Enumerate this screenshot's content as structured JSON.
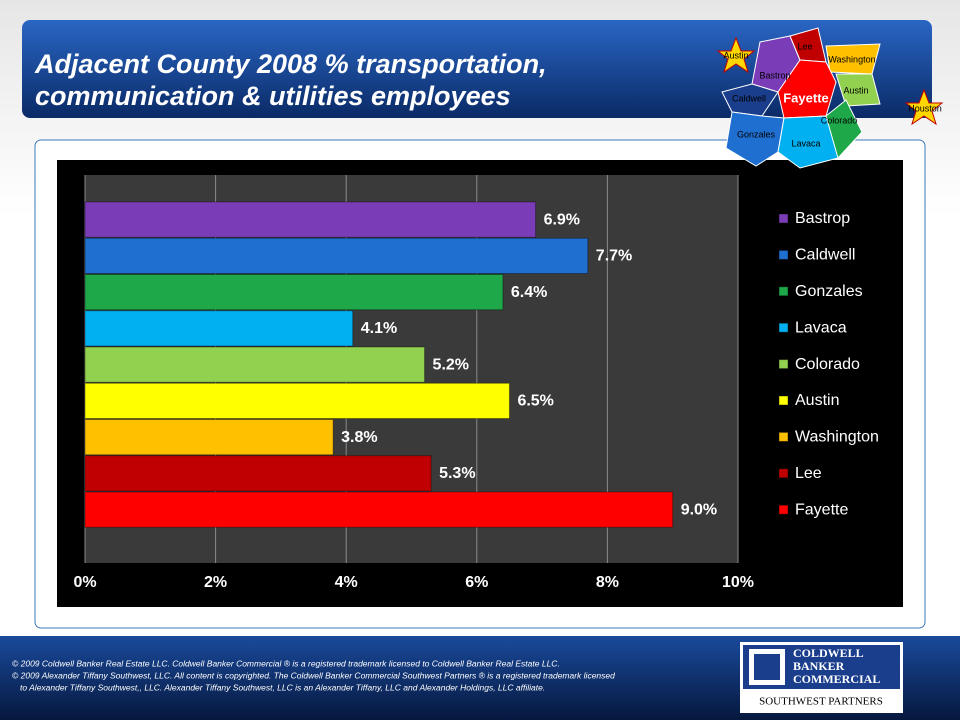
{
  "chart_data": {
    "type": "bar",
    "orientation": "horizontal",
    "title": "Adjacent County 2008 % transportation, communication & utilities employees",
    "categories": [
      "Bastrop",
      "Caldwell",
      "Gonzales",
      "Lavaca",
      "Colorado",
      "Austin",
      "Washington",
      "Lee",
      "Fayette"
    ],
    "values": [
      6.9,
      7.7,
      6.4,
      4.1,
      5.2,
      6.5,
      3.8,
      5.3,
      9.0
    ],
    "value_labels": [
      "6.9%",
      "7.7%",
      "6.4%",
      "4.1%",
      "5.2%",
      "6.5%",
      "3.8%",
      "5.3%",
      "9.0%"
    ],
    "colors": [
      "#7b3cb8",
      "#1f6fd0",
      "#1ea84a",
      "#00b0f0",
      "#92d050",
      "#ffff00",
      "#ffc000",
      "#c00000",
      "#ff0000"
    ],
    "xlim": [
      0,
      10
    ],
    "xticks": [
      {
        "value": 0,
        "label": "0%"
      },
      {
        "value": 2,
        "label": "2%"
      },
      {
        "value": 4,
        "label": "4%"
      },
      {
        "value": 6,
        "label": "6%"
      },
      {
        "value": 8,
        "label": "8%"
      },
      {
        "value": 10,
        "label": "10%"
      }
    ],
    "grid": true,
    "legend": "right"
  },
  "map_labels": [
    "Austin",
    "Lee",
    "Bastrop",
    "Washington",
    "Caldwell",
    "Fayette",
    "Austin",
    "Colorado",
    "Houston",
    "Gonzales",
    "Lavaca"
  ],
  "footer": [
    "© 2009 Coldwell Banker Real Estate LLC. Coldwell Banker Commercial ® is a registered trademark licensed to Coldwell Banker Real Estate LLC.",
    "© 2009 Alexander Tiffany Southwest, LLC. All content is copyrighted. The Coldwell Banker Commercial Southwest Partners ® is a registered trademark licensed",
    "to Alexander Tiffany Southwest,, LLC.  Alexander Tiffany Southwest, LLC is an Alexander Tiffany, LLC and Alexander Holdings, LLC affiliate."
  ],
  "logo": {
    "lines": [
      "COLDWELL",
      "BANKER",
      "COMMERCIAL"
    ],
    "subtitle": "SOUTHWEST PARTNERS"
  }
}
